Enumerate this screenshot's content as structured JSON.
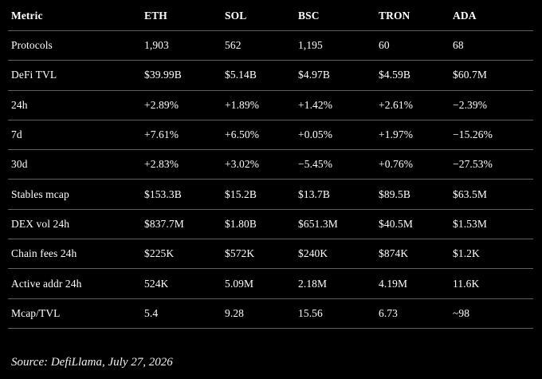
{
  "table": {
    "columns": [
      "Metric",
      "ETH",
      "SOL",
      "BSC",
      "TRON",
      "ADA"
    ],
    "rows": [
      [
        "Protocols",
        "1,903",
        "562",
        "1,195",
        "60",
        "68"
      ],
      [
        "DeFi TVL",
        "$39.99B",
        "$5.14B",
        "$4.97B",
        "$4.59B",
        "$60.7M"
      ],
      [
        "24h",
        "+2.89%",
        "+1.89%",
        "+1.42%",
        "+2.61%",
        "−2.39%"
      ],
      [
        "7d",
        "+7.61%",
        "+6.50%",
        "+0.05%",
        "+1.97%",
        "−15.26%"
      ],
      [
        "30d",
        "+2.83%",
        "+3.02%",
        "−5.45%",
        "+0.76%",
        "−27.53%"
      ],
      [
        "Stables mcap",
        "$153.3B",
        "$15.2B",
        "$13.7B",
        "$89.5B",
        "$63.5M"
      ],
      [
        "DEX vol 24h",
        "$837.7M",
        "$1.80B",
        "$651.3M",
        "$40.5M",
        "$1.53M"
      ],
      [
        "Chain fees 24h",
        "$225K",
        "$572K",
        "$240K",
        "$874K",
        "$1.2K"
      ],
      [
        "Active addr 24h",
        "524K",
        "5.09M",
        "2.18M",
        "4.19M",
        "11.6K"
      ],
      [
        "Mcap/TVL",
        "5.4",
        "9.28",
        "15.56",
        "6.73",
        "~98"
      ]
    ]
  },
  "source": "Source: DefiLlama, July 27, 2026"
}
